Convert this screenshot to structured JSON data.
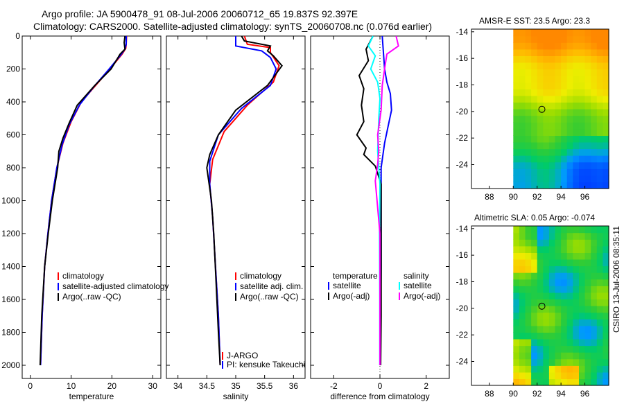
{
  "header": {
    "line1": "Argo profile: JA 5900478_91 08-Jul-2006 20060712_65 19.837S 92.397E",
    "line2": "Climatology: CARS2000. Satellite-adjusted climatology: synTS_20060708.nc (0.076d earlier)"
  },
  "side_label": "CSIRO 13-Jul-2006 08:35:11",
  "colors": {
    "red": "#ff0000",
    "blue": "#0000ff",
    "black": "#000000",
    "cyan": "#00ffff",
    "magenta": "#ff00ff"
  },
  "chart_data": [
    {
      "type": "line",
      "name": "temperature",
      "xlabel": "temperature",
      "xlim": [
        -2,
        32
      ],
      "ylim": [
        2080,
        0
      ],
      "xticks": [
        0,
        10,
        20,
        30
      ],
      "yticks": [
        0,
        200,
        400,
        600,
        800,
        1000,
        1200,
        1400,
        1600,
        1800,
        2000
      ],
      "legend": [
        "climatology",
        "satellite-adjusted climatology",
        "Argo(..raw -QC)"
      ],
      "series": [
        {
          "name": "climatology",
          "color": "red",
          "x": [
            23.6,
            23.5,
            23.4,
            22.5,
            19.5,
            16,
            12.5,
            10,
            8,
            6.5,
            5.2,
            4.3,
            3.5,
            2.9,
            2.5
          ],
          "y": [
            0,
            50,
            75,
            110,
            200,
            300,
            400,
            520,
            650,
            800,
            1000,
            1200,
            1400,
            1700,
            2000
          ]
        },
        {
          "name": "satellite-adjusted climatology",
          "color": "blue",
          "x": [
            23.5,
            23.5,
            23.2,
            22,
            19,
            15.5,
            12,
            9.5,
            7.8,
            6.5,
            5.2,
            4.3,
            3.5,
            2.9,
            2.5
          ],
          "y": [
            0,
            50,
            80,
            120,
            210,
            310,
            420,
            540,
            660,
            800,
            1000,
            1200,
            1400,
            1700,
            2000
          ]
        },
        {
          "name": "Argo(..raw -QC)",
          "color": "black",
          "x": [
            23.2,
            23,
            23.2,
            22,
            19.8,
            15.8,
            11.5,
            9.5,
            8,
            7,
            6.7,
            5.4,
            4.4,
            3.5,
            2.8,
            2.4
          ],
          "y": [
            0,
            40,
            80,
            110,
            200,
            300,
            420,
            530,
            620,
            700,
            800,
            1000,
            1200,
            1400,
            1700,
            2000
          ]
        }
      ]
    },
    {
      "type": "line",
      "name": "salinity",
      "xlabel": "salinity",
      "xlim": [
        33.8,
        36.2
      ],
      "ylim": [
        2080,
        0
      ],
      "xticks": [
        34,
        34.5,
        35,
        35.5,
        36
      ],
      "legend": [
        "climatology",
        "satellite adj. clim.",
        "Argo(..raw -QC)"
      ],
      "annotations": [
        "J-ARGO",
        "PI: kensuke Takeuchi"
      ],
      "series": [
        {
          "name": "climatology",
          "color": "red",
          "x": [
            35.15,
            35.2,
            35.6,
            35.6,
            35.75,
            35.65,
            35.2,
            34.8,
            34.6,
            34.55,
            34.6,
            34.65,
            34.7,
            34.72,
            34.73
          ],
          "y": [
            0,
            50,
            70,
            100,
            180,
            280,
            420,
            580,
            750,
            900,
            1100,
            1400,
            1700,
            1900,
            2000
          ]
        },
        {
          "name": "satellite adj. clim.",
          "color": "blue",
          "x": [
            35.0,
            35.0,
            35.45,
            35.6,
            35.7,
            35.6,
            35.1,
            34.7,
            34.55,
            34.55,
            34.6,
            34.65,
            34.7,
            34.72,
            34.73
          ],
          "y": [
            0,
            60,
            90,
            130,
            200,
            300,
            440,
            600,
            760,
            900,
            1100,
            1400,
            1700,
            1900,
            2000
          ]
        },
        {
          "name": "Argo(..raw -QC)",
          "color": "black",
          "x": [
            35.1,
            35.15,
            35.6,
            35.55,
            35.65,
            35.8,
            35.55,
            35.0,
            34.7,
            34.55,
            34.5,
            34.58,
            34.62,
            34.66,
            34.7,
            34.73
          ],
          "y": [
            0,
            30,
            60,
            90,
            120,
            180,
            300,
            450,
            600,
            720,
            800,
            1000,
            1200,
            1500,
            1800,
            2000
          ]
        }
      ]
    },
    {
      "type": "line",
      "name": "difference",
      "xlabel": "difference from climatology",
      "xlim": [
        -3.0,
        3.0
      ],
      "ylim": [
        2080,
        0
      ],
      "xticks": [
        -2,
        0,
        2
      ],
      "legend_left_title": "temperature",
      "legend_right_title": "salinity",
      "legend": [
        "satellite",
        "Argo(-adj)",
        "satellite",
        "Argo(-adj)"
      ],
      "series": [
        {
          "name": "temperature satellite",
          "color": "blue",
          "x": [
            0.1,
            0.15,
            0.2,
            0.3,
            0.45,
            0.5,
            0.35,
            0.2,
            0.05,
            0.05,
            0.05,
            0.03,
            0.02
          ],
          "y": [
            0,
            100,
            200,
            280,
            350,
            450,
            550,
            650,
            800,
            1000,
            1400,
            1800,
            2000
          ]
        },
        {
          "name": "temperature Argo(-adj)",
          "color": "black",
          "x": [
            -0.3,
            -0.6,
            -0.5,
            -0.9,
            -0.7,
            -0.8,
            -0.7,
            -1.0,
            -0.6,
            -0.7,
            -0.2,
            0.05,
            0.05,
            0.05,
            0.03
          ],
          "y": [
            0,
            80,
            150,
            240,
            320,
            420,
            520,
            600,
            680,
            720,
            790,
            900,
            1300,
            1700,
            2000
          ]
        },
        {
          "name": "salinity satellite",
          "color": "cyan",
          "x": [
            -0.3,
            -0.5,
            -0.2,
            -0.4,
            -0.1,
            0.0,
            -0.05,
            -0.1,
            0.0,
            -0.02,
            -0.01,
            -0.01
          ],
          "y": [
            0,
            60,
            120,
            200,
            280,
            380,
            500,
            700,
            900,
            1200,
            1600,
            2000
          ]
        },
        {
          "name": "salinity Argo(-adj)",
          "color": "magenta",
          "x": [
            0.7,
            0.8,
            0.3,
            0.2,
            0.1,
            0.05,
            -0.1,
            -0.05,
            -0.1,
            -0.2,
            0.0,
            0.0
          ],
          "y": [
            0,
            60,
            110,
            200,
            300,
            450,
            600,
            700,
            780,
            880,
            1200,
            2000
          ]
        }
      ]
    },
    {
      "type": "heatmap",
      "name": "sst",
      "title": "AMSR-E SST: 23.5 Argo: 23.3",
      "xlim": [
        86.5,
        98.0
      ],
      "ylim": [
        -25.8,
        -13.8
      ],
      "xticks": [
        88,
        90,
        92,
        94,
        96
      ],
      "yticks": [
        -14,
        -16,
        -18,
        -20,
        -22,
        -24
      ],
      "data_xlim": [
        90,
        98
      ],
      "argo_position": {
        "lon": 92.397,
        "lat": -19.837
      }
    },
    {
      "type": "heatmap",
      "name": "sla",
      "title": "Altimetric SLA: 0.05 Argo: -0.074",
      "xlim": [
        86.5,
        98.0
      ],
      "ylim": [
        -25.8,
        -13.8
      ],
      "xticks": [
        88,
        90,
        92,
        94,
        96
      ],
      "yticks": [
        -14,
        -16,
        -18,
        -20,
        -22,
        -24
      ],
      "data_xlim": [
        90,
        98
      ],
      "argo_position": {
        "lon": 92.397,
        "lat": -19.837
      }
    }
  ]
}
